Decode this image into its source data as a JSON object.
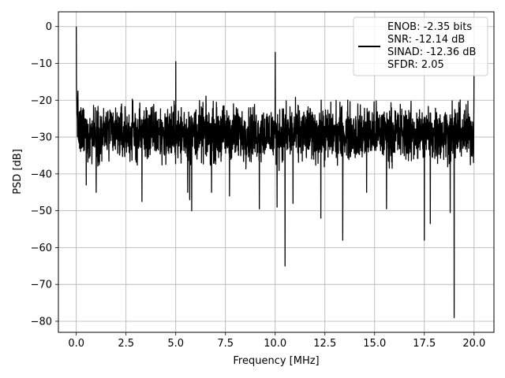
{
  "chart_data": {
    "type": "line",
    "title": "",
    "xlabel": "Frequency [MHz]",
    "ylabel": "PSD [dB]",
    "xlim": [
      -0.9,
      21.0
    ],
    "ylim": [
      -83,
      4
    ],
    "xticks": [
      0.0,
      2.5,
      5.0,
      7.5,
      10.0,
      12.5,
      15.0,
      17.5,
      20.0
    ],
    "xtick_labels": [
      "0.0",
      "2.5",
      "5.0",
      "7.5",
      "10.0",
      "12.5",
      "15.0",
      "17.5",
      "20.0"
    ],
    "yticks": [
      0,
      -10,
      -20,
      -30,
      -40,
      -50,
      -60,
      -70,
      -80
    ],
    "ytick_labels": [
      "0",
      "−10",
      "−20",
      "−30",
      "−40",
      "−50",
      "−60",
      "−70",
      "−80"
    ],
    "grid": true,
    "legend": {
      "placement": "upper-right",
      "entries": [
        "ENOB: -2.35 bits",
        "SNR: -12.14 dB",
        "SINAD: -12.36 dB",
        "SFDR: 2.05"
      ]
    },
    "series": [
      {
        "color": "#000000",
        "noise_floor_mean_db": -29,
        "noise_band_db": [
          -40,
          -18
        ],
        "peaks": [
          {
            "x": 0.0,
            "y": 0
          },
          {
            "x": 5.0,
            "y": -9.5
          },
          {
            "x": 10.0,
            "y": -7
          },
          {
            "x": 20.0,
            "y": -8.5
          }
        ],
        "dips": [
          {
            "x": 0.5,
            "y": -43
          },
          {
            "x": 1.0,
            "y": -45
          },
          {
            "x": 3.3,
            "y": -47.5
          },
          {
            "x": 5.6,
            "y": -45
          },
          {
            "x": 5.7,
            "y": -47
          },
          {
            "x": 5.8,
            "y": -50
          },
          {
            "x": 6.8,
            "y": -45
          },
          {
            "x": 7.7,
            "y": -46
          },
          {
            "x": 9.2,
            "y": -49.5
          },
          {
            "x": 10.1,
            "y": -49
          },
          {
            "x": 10.5,
            "y": -65
          },
          {
            "x": 10.9,
            "y": -48
          },
          {
            "x": 12.3,
            "y": -52
          },
          {
            "x": 13.4,
            "y": -58
          },
          {
            "x": 14.6,
            "y": -45
          },
          {
            "x": 15.6,
            "y": -49.5
          },
          {
            "x": 17.5,
            "y": -58
          },
          {
            "x": 17.8,
            "y": -53.5
          },
          {
            "x": 18.8,
            "y": -50.5
          },
          {
            "x": 19.0,
            "y": -79
          }
        ]
      }
    ]
  }
}
